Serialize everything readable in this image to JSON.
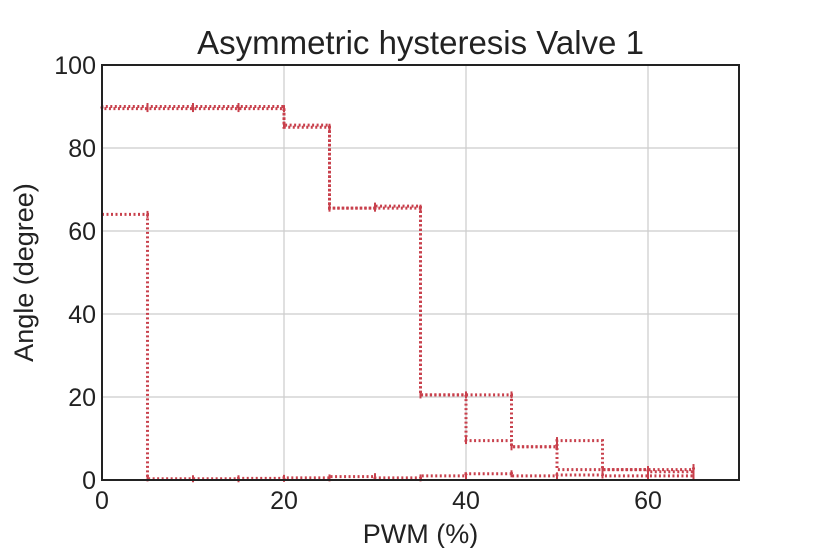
{
  "chart_data": {
    "type": "line",
    "title": "Asymmetric hysteresis Valve 1",
    "xlabel": "PWM (%)",
    "ylabel": "Angle (degree)",
    "xlim": [
      0,
      70
    ],
    "ylim": [
      0,
      100
    ],
    "xticks": [
      0,
      20,
      40,
      60
    ],
    "yticks": [
      0,
      20,
      40,
      60,
      80,
      100
    ],
    "grid": true,
    "legend": "none",
    "line_style": "dotted",
    "series": [
      {
        "color": "#c8404c",
        "x": [
          0,
          5,
          5,
          10,
          15,
          20,
          25,
          30,
          35,
          40,
          45,
          50,
          55,
          60,
          65
        ],
        "y": [
          64,
          64,
          0.5,
          0.3,
          0.3,
          0.4,
          0.5,
          0.8,
          0.5,
          1.0,
          1.5,
          1.0,
          1.2,
          1.0,
          1.0
        ]
      },
      {
        "color": "#c8404c",
        "x": [
          0,
          5,
          10,
          15,
          20,
          25,
          30,
          35,
          40,
          45,
          50,
          55,
          60,
          65
        ],
        "y": [
          90,
          89.5,
          89.5,
          89.5,
          89.5,
          85,
          65.5,
          65.5,
          20.5,
          20.5,
          8,
          2.5,
          2.5,
          2.0
        ]
      },
      {
        "color": "#c8404c",
        "x": [
          65,
          60,
          55,
          50,
          45,
          40,
          35,
          30,
          25,
          20,
          15,
          10,
          5,
          0
        ],
        "y": [
          3.0,
          2.5,
          2.5,
          9.5,
          8.0,
          9.5,
          20.5,
          66,
          65.5,
          85.5,
          90,
          90,
          90,
          90
        ]
      }
    ]
  }
}
